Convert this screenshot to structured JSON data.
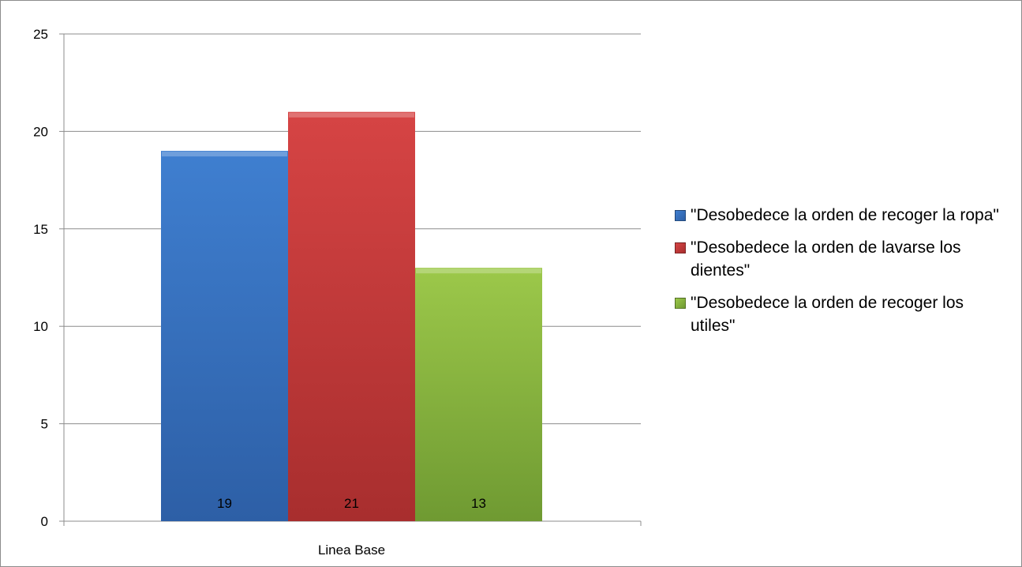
{
  "chart_data": {
    "type": "bar",
    "categories": [
      "Linea Base"
    ],
    "series": [
      {
        "name": "\"Desobedece la orden de recoger la ropa\"",
        "values": [
          19
        ],
        "color": "#3f7fd0",
        "color_dark": "#2d5fa6"
      },
      {
        "name": "\"Desobedece la orden de lavarse los dientes\"",
        "values": [
          21
        ],
        "color": "#d64444",
        "color_dark": "#a82e2e"
      },
      {
        "name": "\"Desobedece la orden de recoger los utiles\"",
        "values": [
          13
        ],
        "color": "#9cc84a",
        "color_dark": "#6f9a32"
      }
    ],
    "y_ticks": [
      "0",
      "5",
      "10",
      "15",
      "20",
      "25"
    ],
    "ylim": [
      0,
      25
    ],
    "grid": true,
    "data_labels": true,
    "legend_position": "right",
    "title": "",
    "xlabel": "",
    "ylabel": ""
  }
}
